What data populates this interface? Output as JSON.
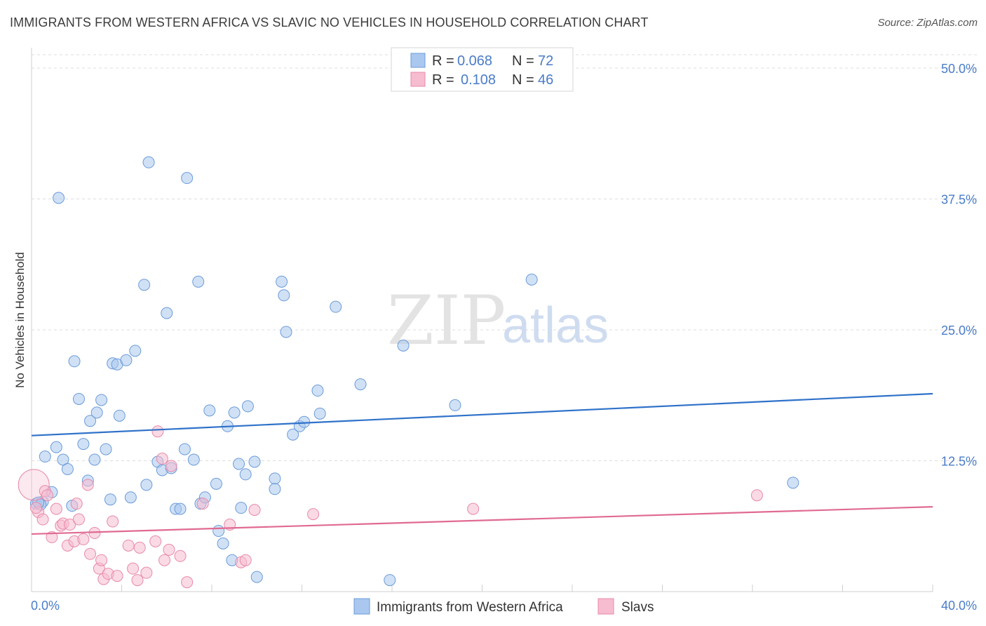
{
  "title": "IMMIGRANTS FROM WESTERN AFRICA VS SLAVIC NO VEHICLES IN HOUSEHOLD CORRELATION CHART",
  "source": "Source: ZipAtlas.com",
  "colors": {
    "blue_fill": "#aac8ef",
    "blue_stroke": "#6c9bd8",
    "blue_line": "#2f72c9",
    "pink_fill": "#f6bcd0",
    "pink_stroke": "#e88aa8",
    "pink_line": "#e06a93",
    "tick_text": "#4a7cc9",
    "grid": "#dddddd"
  },
  "legend": {
    "rows": [
      {
        "r_label": "R =",
        "r_value": "0.068",
        "n_label": "N =",
        "n_value": "72",
        "color": "blue"
      },
      {
        "r_label": "R =",
        "r_value": "0.108",
        "n_label": "N =",
        "n_value": "46",
        "color": "pink"
      }
    ]
  },
  "watermark": {
    "zip": "ZIP",
    "atlas": "atlas"
  },
  "chart_data": {
    "type": "scatter",
    "title": "IMMIGRANTS FROM WESTERN AFRICA VS SLAVIC NO VEHICLES IN HOUSEHOLD CORRELATION CHART",
    "xlabel": "",
    "ylabel": "No Vehicles in Household",
    "xlim": [
      0,
      40
    ],
    "ylim": [
      0,
      50
    ],
    "x_tick_labels": [
      {
        "value": 0,
        "label": "0.0%"
      },
      {
        "value": 40,
        "label": "40.0%"
      }
    ],
    "y_tick_labels": [
      {
        "value": 12.5,
        "label": "12.5%"
      },
      {
        "value": 25,
        "label": "25.0%"
      },
      {
        "value": 37.5,
        "label": "37.5%"
      },
      {
        "value": 50,
        "label": "50.0%"
      }
    ],
    "series": [
      {
        "name": "Immigrants from Western Africa",
        "color": "blue",
        "trend": {
          "x0": 0,
          "y0": 14.9,
          "x1": 40,
          "y1": 18.9
        },
        "points": [
          [
            0.2,
            8.4
          ],
          [
            0.5,
            8.6
          ],
          [
            0.4,
            8.3
          ],
          [
            0.6,
            12.9
          ],
          [
            0.9,
            9.5
          ],
          [
            1.1,
            13.8
          ],
          [
            1.4,
            12.6
          ],
          [
            1.6,
            11.7
          ],
          [
            1.8,
            8.2
          ],
          [
            1.9,
            22.0
          ],
          [
            2.1,
            18.4
          ],
          [
            2.3,
            14.1
          ],
          [
            2.5,
            10.6
          ],
          [
            2.6,
            16.3
          ],
          [
            2.8,
            12.6
          ],
          [
            2.9,
            17.1
          ],
          [
            3.1,
            18.3
          ],
          [
            3.3,
            13.6
          ],
          [
            3.5,
            8.8
          ],
          [
            3.6,
            21.8
          ],
          [
            3.9,
            16.8
          ],
          [
            3.8,
            21.7
          ],
          [
            4.2,
            22.1
          ],
          [
            4.4,
            9.0
          ],
          [
            4.6,
            23.0
          ],
          [
            5.0,
            29.3
          ],
          [
            5.1,
            10.2
          ],
          [
            5.2,
            41.0
          ],
          [
            5.6,
            12.4
          ],
          [
            5.8,
            11.6
          ],
          [
            6.0,
            26.6
          ],
          [
            6.2,
            11.8
          ],
          [
            6.4,
            7.9
          ],
          [
            6.6,
            7.9
          ],
          [
            6.8,
            13.6
          ],
          [
            6.9,
            39.5
          ],
          [
            7.2,
            12.6
          ],
          [
            7.4,
            29.6
          ],
          [
            7.5,
            8.4
          ],
          [
            7.7,
            9.0
          ],
          [
            7.9,
            17.3
          ],
          [
            8.2,
            10.3
          ],
          [
            8.3,
            5.8
          ],
          [
            8.5,
            4.6
          ],
          [
            8.7,
            15.8
          ],
          [
            8.9,
            3.0
          ],
          [
            9.0,
            17.1
          ],
          [
            9.2,
            12.2
          ],
          [
            9.3,
            8.0
          ],
          [
            9.5,
            11.2
          ],
          [
            9.6,
            17.7
          ],
          [
            9.9,
            12.4
          ],
          [
            10.0,
            1.4
          ],
          [
            10.8,
            10.8
          ],
          [
            10.8,
            9.8
          ],
          [
            11.1,
            29.6
          ],
          [
            11.2,
            28.3
          ],
          [
            11.3,
            24.8
          ],
          [
            11.6,
            15.0
          ],
          [
            11.9,
            15.8
          ],
          [
            12.1,
            16.2
          ],
          [
            12.7,
            19.2
          ],
          [
            12.8,
            17.0
          ],
          [
            13.5,
            27.2
          ],
          [
            14.6,
            19.8
          ],
          [
            15.9,
            1.1
          ],
          [
            16.5,
            23.5
          ],
          [
            18.8,
            17.8
          ],
          [
            22.2,
            29.8
          ],
          [
            33.8,
            10.4
          ],
          [
            1.2,
            37.6
          ],
          [
            0.3,
            8.5
          ]
        ]
      },
      {
        "name": "Slavs",
        "color": "pink",
        "trend": {
          "x0": 0,
          "y0": 5.5,
          "x1": 40,
          "y1": 8.1
        },
        "points": [
          [
            0.1,
            10.2
          ],
          [
            0.3,
            7.6
          ],
          [
            0.5,
            6.9
          ],
          [
            0.6,
            9.6
          ],
          [
            0.7,
            9.2
          ],
          [
            0.9,
            5.2
          ],
          [
            1.1,
            7.9
          ],
          [
            1.3,
            6.3
          ],
          [
            1.4,
            6.5
          ],
          [
            1.6,
            4.4
          ],
          [
            1.7,
            6.4
          ],
          [
            1.9,
            4.8
          ],
          [
            2.0,
            8.4
          ],
          [
            2.1,
            6.9
          ],
          [
            2.3,
            5.0
          ],
          [
            2.5,
            10.2
          ],
          [
            2.6,
            3.6
          ],
          [
            2.8,
            5.6
          ],
          [
            3.0,
            2.2
          ],
          [
            3.1,
            3.0
          ],
          [
            3.2,
            1.2
          ],
          [
            3.4,
            1.7
          ],
          [
            3.6,
            6.7
          ],
          [
            3.8,
            1.5
          ],
          [
            4.3,
            4.4
          ],
          [
            4.5,
            2.2
          ],
          [
            4.7,
            1.1
          ],
          [
            4.8,
            4.2
          ],
          [
            5.1,
            1.8
          ],
          [
            5.5,
            4.8
          ],
          [
            5.6,
            15.3
          ],
          [
            5.8,
            12.7
          ],
          [
            5.9,
            3.0
          ],
          [
            6.1,
            4.0
          ],
          [
            6.2,
            12.0
          ],
          [
            6.6,
            3.4
          ],
          [
            6.9,
            0.9
          ],
          [
            7.6,
            8.4
          ],
          [
            8.8,
            6.4
          ],
          [
            9.3,
            2.8
          ],
          [
            9.5,
            3.0
          ],
          [
            9.9,
            7.8
          ],
          [
            12.5,
            7.4
          ],
          [
            19.6,
            7.9
          ],
          [
            32.2,
            9.2
          ],
          [
            0.2,
            8.0
          ]
        ]
      }
    ]
  },
  "bottom_legend": [
    {
      "label": "Immigrants from Western Africa",
      "color": "blue"
    },
    {
      "label": "Slavs",
      "color": "pink"
    }
  ]
}
